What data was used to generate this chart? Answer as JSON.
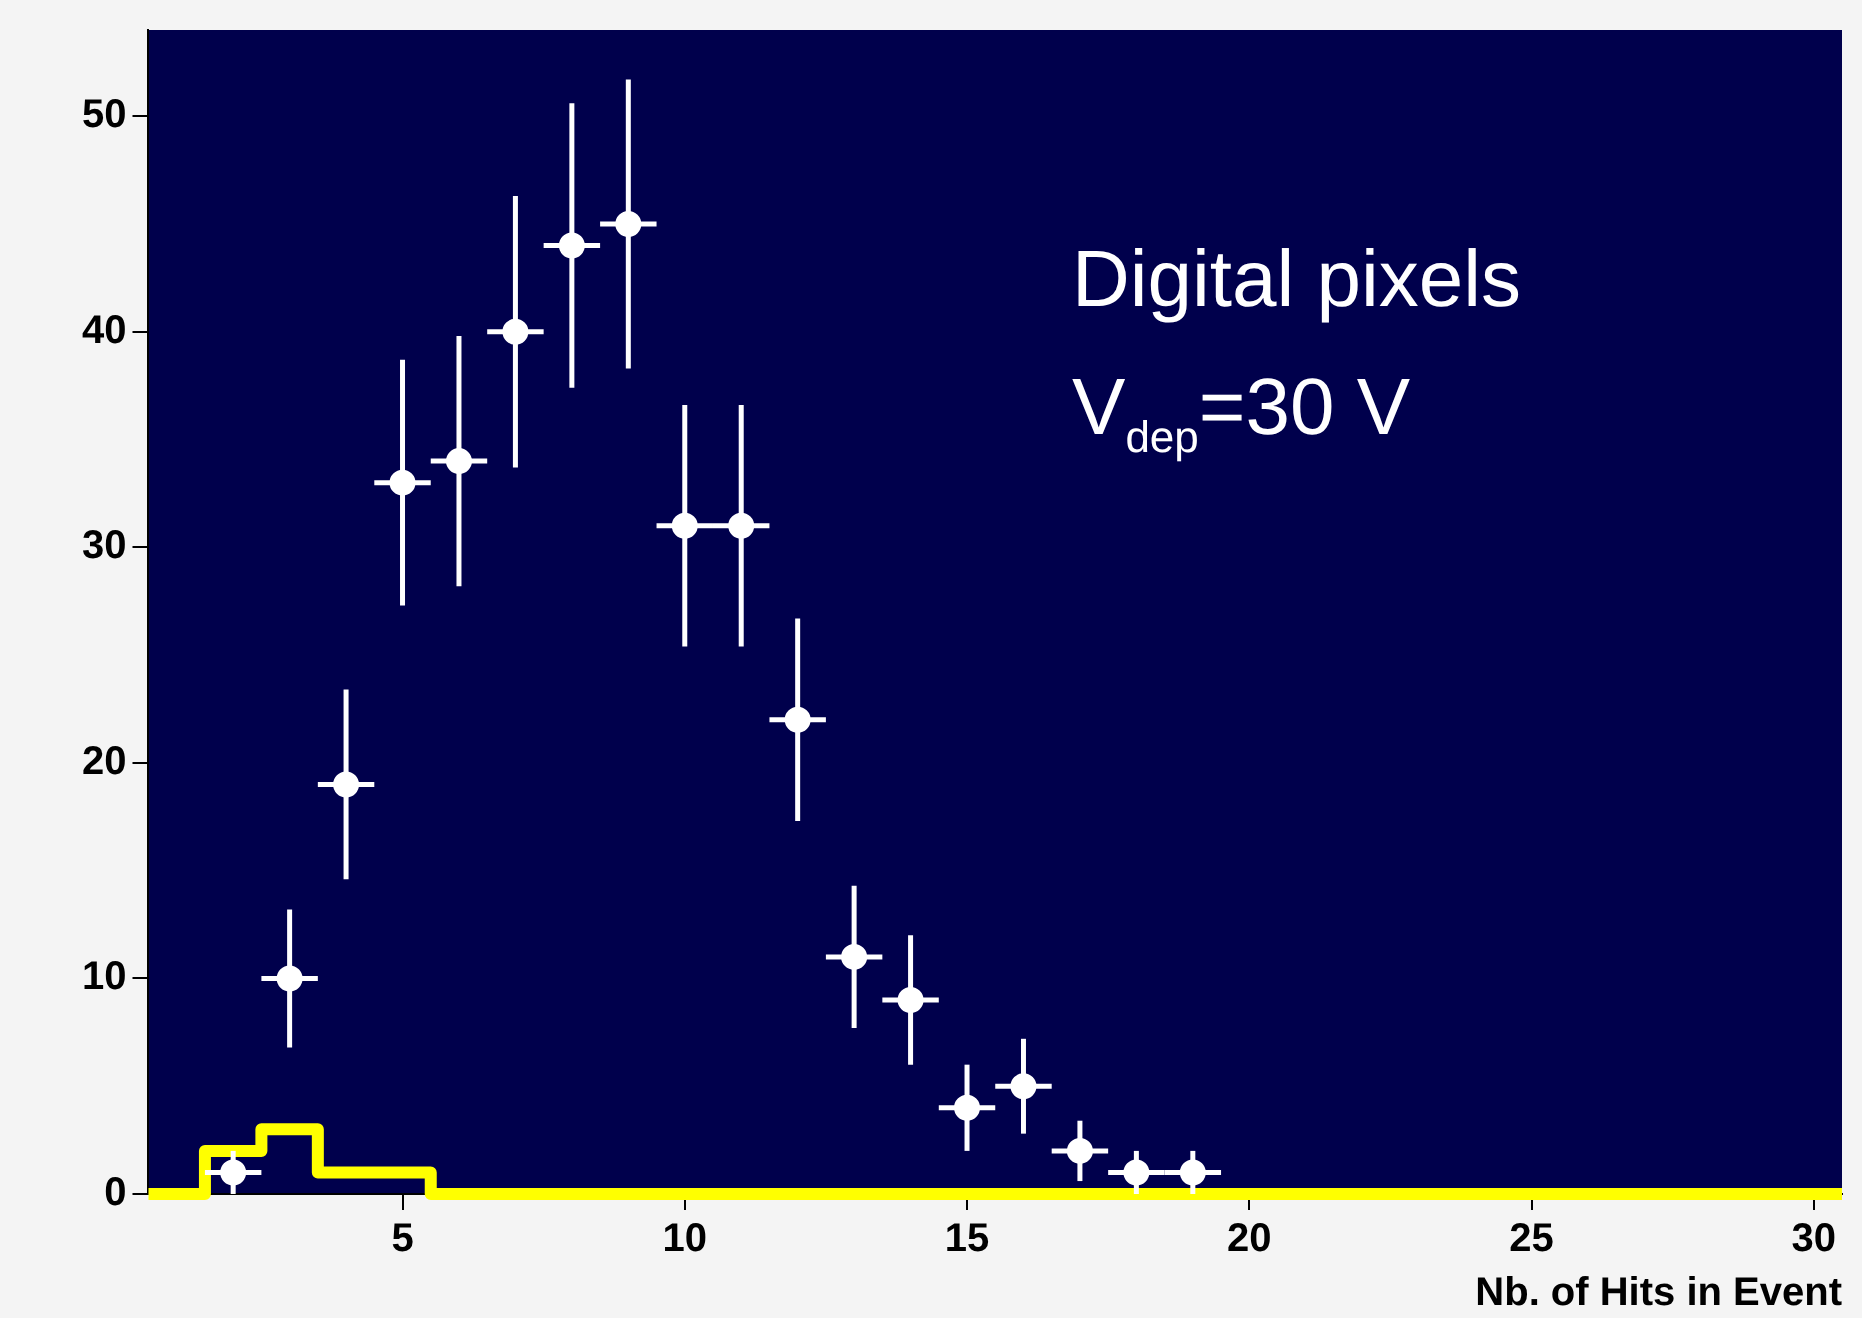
{
  "chart_data": {
    "type": "scatter",
    "xlabel": "Nb. of Hits in Event",
    "annotations": [
      "Digital pixels",
      "V$_{dep}$=30 V"
    ],
    "xlim": [
      0.5,
      30.5
    ],
    "xticks": [
      5,
      10,
      15,
      20,
      25,
      30
    ],
    "ylim": [
      0,
      54
    ],
    "yticks": [
      0,
      10,
      20,
      30,
      40,
      50
    ],
    "grid": false,
    "legend": false,
    "marker": "circle",
    "series": [
      {
        "type": "histogram",
        "color": "#ffff00",
        "bins": [
          0.5,
          1.5,
          2.5,
          3.5,
          4.5,
          5.5,
          6.5,
          7.5,
          8.5,
          9.5,
          10.5,
          11.5,
          12.5,
          13.5,
          14.5,
          15.5,
          16.5,
          17.5,
          18.5,
          19.5,
          20.5,
          21.5,
          22.5,
          23.5,
          24.5,
          25.5,
          26.5,
          27.5,
          28.5,
          29.5,
          30.5
        ],
        "values": [
          0,
          2,
          3,
          1,
          1,
          0,
          0,
          0,
          0,
          0,
          0,
          0,
          0,
          0,
          0,
          0,
          0,
          0,
          0,
          0,
          0,
          0,
          0,
          0,
          0,
          0,
          0,
          0,
          0,
          0
        ]
      },
      {
        "type": "scatter",
        "color": "#ffffff",
        "x": [
          2,
          3,
          4,
          5,
          6,
          7,
          8,
          9,
          10,
          11,
          12,
          13,
          14,
          15,
          16,
          17,
          18,
          19
        ],
        "values": [
          1,
          10,
          19,
          33,
          34,
          40,
          44,
          45,
          31,
          31,
          22,
          11,
          9,
          4,
          5,
          2,
          1,
          1
        ],
        "errors": [
          1,
          3.2,
          4.4,
          5.7,
          5.8,
          6.3,
          6.6,
          6.7,
          5.6,
          5.6,
          4.7,
          3.3,
          3,
          2,
          2.2,
          1.4,
          1,
          1
        ],
        "xerrors": [
          0.5,
          0.5,
          0.5,
          0.5,
          0.5,
          0.5,
          0.5,
          0.5,
          0.5,
          0.5,
          0.5,
          0.5,
          0.5,
          0.5,
          0.5,
          0.5,
          0.5,
          0.5
        ]
      }
    ]
  }
}
